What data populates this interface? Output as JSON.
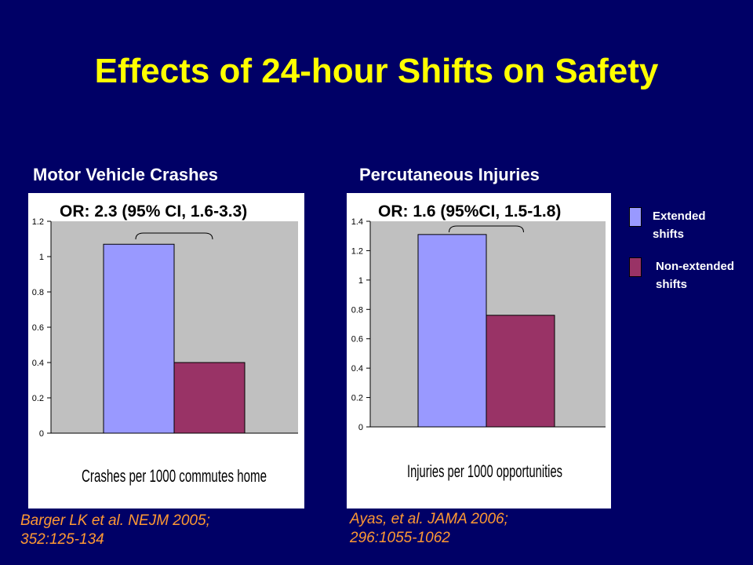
{
  "title": "Effects of 24-hour Shifts on Safety",
  "legend": {
    "extended": {
      "label": "Extended shifts",
      "color": "#9999ff"
    },
    "nonextended": {
      "label": "Non-extended shifts",
      "color": "#993366"
    }
  },
  "panels": [
    {
      "subtitle": "Motor Vehicle Crashes",
      "or_text": "OR: 2.3 (95% CI, 1.6-3.3)",
      "citation_line1": "Barger LK et al. NEJM 2005;",
      "citation_line2": "352:125-134"
    },
    {
      "subtitle": "Percutaneous Injuries",
      "or_text": "OR: 1.6 (95%CI, 1.5-1.8)",
      "citation_line1": "Ayas,  et al. JAMA 2006;",
      "citation_line2": "296:1055-1062"
    }
  ],
  "chart_data": [
    {
      "type": "bar",
      "title": "Motor Vehicle Crashes",
      "xlabel": "Crashes per 1000 commutes home",
      "ylabel": "",
      "ylim": [
        0,
        1.2
      ],
      "yticks": [
        0,
        0.2,
        0.4,
        0.6,
        0.8,
        1,
        1.2
      ],
      "ytick_labels": [
        "0",
        "0.2",
        "0.4",
        "0.6",
        "0.8",
        "1",
        "1.2"
      ],
      "series": [
        {
          "name": "Extended shifts",
          "values": [
            1.07
          ]
        },
        {
          "name": "Non-extended shifts",
          "values": [
            0.4
          ]
        }
      ],
      "grid": false,
      "legend_position": "right"
    },
    {
      "type": "bar",
      "title": "Percutaneous Injuries",
      "xlabel": "Injuries per 1000 opportunities",
      "ylabel": "",
      "ylim": [
        0,
        1.4
      ],
      "yticks": [
        0,
        0.2,
        0.4,
        0.6,
        0.8,
        1,
        1.2,
        1.4
      ],
      "ytick_labels": [
        "0",
        "0.2",
        "0.4",
        "0.6",
        "0.8",
        "1",
        "1.2",
        "1.4"
      ],
      "series": [
        {
          "name": "Extended shifts",
          "values": [
            1.31
          ]
        },
        {
          "name": "Non-extended shifts",
          "values": [
            0.76
          ]
        }
      ],
      "grid": false,
      "legend_position": "right"
    }
  ]
}
